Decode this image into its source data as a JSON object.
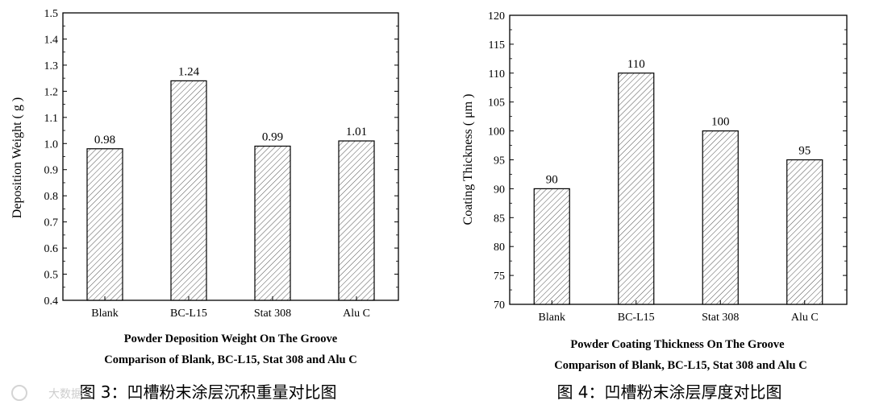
{
  "chart_data": [
    {
      "type": "bar",
      "categories": [
        "Blank",
        "BC-L15",
        "Stat 308",
        "Alu C"
      ],
      "values": [
        0.98,
        1.24,
        0.99,
        1.01
      ],
      "data_labels": [
        "0.98",
        "1.24",
        "0.99",
        "1.01"
      ],
      "title_lines": [
        "Powder Deposition Weight On The Groove",
        "Comparison of Blank, BC-L15, Stat 308 and Alu C"
      ],
      "xlabel": "",
      "ylabel": "Deposition Weight ( g )",
      "ylim": [
        0.4,
        1.5
      ],
      "yticks": [
        "0.4",
        "0.5",
        "0.6",
        "0.7",
        "0.8",
        "0.9",
        "1.0",
        "1.1",
        "1.2",
        "1.3",
        "1.4",
        "1.5"
      ],
      "grid": false,
      "bar_fill": "hatched",
      "caption": "图 3：凹槽粉末涂层沉积重量对比图"
    },
    {
      "type": "bar",
      "categories": [
        "Blank",
        "BC-L15",
        "Stat 308",
        "Alu C"
      ],
      "values": [
        90,
        110,
        100,
        95
      ],
      "data_labels": [
        "90",
        "110",
        "100",
        "95"
      ],
      "title_lines": [
        "Powder Coating Thickness On The Groove",
        "Comparison of Blank, BC-L15, Stat 308 and Alu C"
      ],
      "xlabel": "",
      "ylabel": "Coating Thickness ( μm )",
      "ylim": [
        70,
        120
      ],
      "yticks": [
        "70",
        "75",
        "80",
        "85",
        "90",
        "95",
        "100",
        "105",
        "110",
        "115",
        "120"
      ],
      "grid": false,
      "bar_fill": "hatched",
      "caption": "图 4：凹槽粉末涂层厚度对比图"
    }
  ],
  "watermark": "大数据"
}
